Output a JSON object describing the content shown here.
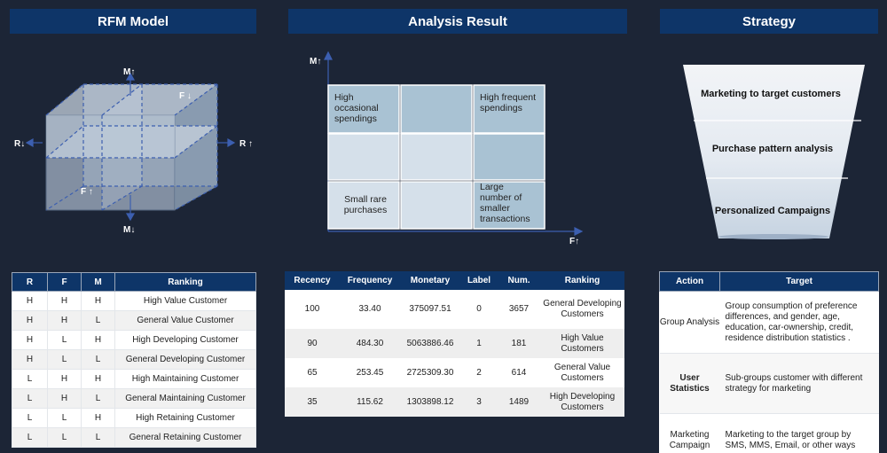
{
  "headers": {
    "rfm": "RFM Model",
    "analysis": "Analysis Result",
    "strategy": "Strategy"
  },
  "cube": {
    "m_up": "M↑",
    "m_down": "M↓",
    "r_left": "R↓",
    "r_right": "R ↑",
    "f_down": "F ↓",
    "f_up": "F ↑"
  },
  "grid": {
    "y_axis": "M↑",
    "x_axis": "F↑",
    "top_left": "High occasional spendings",
    "top_right": "High frequent spendings",
    "bottom_left": "Small rare purchases",
    "bottom_right": "Large number of smaller transactions"
  },
  "funnel": {
    "level1": "Marketing to target customers",
    "level2": "Purchase pattern analysis",
    "level3": "Personalized Campaigns"
  },
  "rfm_table": {
    "columns": [
      "R",
      "F",
      "M",
      "Ranking"
    ],
    "rows": [
      [
        "H",
        "H",
        "H",
        "High Value Customer"
      ],
      [
        "H",
        "H",
        "L",
        "General Value Customer"
      ],
      [
        "H",
        "L",
        "H",
        "High Developing Customer"
      ],
      [
        "H",
        "L",
        "L",
        "General Developing Customer"
      ],
      [
        "L",
        "H",
        "H",
        "High Maintaining Customer"
      ],
      [
        "L",
        "H",
        "L",
        "General Maintaining Customer"
      ],
      [
        "L",
        "L",
        "H",
        "High Retaining Customer"
      ],
      [
        "L",
        "L",
        "L",
        "General Retaining Customer"
      ]
    ]
  },
  "result_table": {
    "columns": [
      "Recency",
      "Frequency",
      "Monetary",
      "Label",
      "Num.",
      "Ranking"
    ],
    "rows": [
      [
        "100",
        "33.40",
        "375097.51",
        "0",
        "3657",
        "General Developing Customers"
      ],
      [
        "90",
        "484.30",
        "5063886.46",
        "1",
        "181",
        "High Value Customers"
      ],
      [
        "65",
        "253.45",
        "2725309.30",
        "2",
        "614",
        "General Value Customers"
      ],
      [
        "35",
        "115.62",
        "1303898.12",
        "3",
        "1489",
        "High Developing Customers"
      ]
    ]
  },
  "strategy_table": {
    "columns": [
      "Action",
      "Target"
    ],
    "rows": [
      [
        "Group Analysis",
        "Group consumption of preference differences, and gender, age, education, car-ownership, credit, residence distribution statistics ."
      ],
      [
        "User Statistics",
        "Sub-groups customer with different strategy for marketing"
      ],
      [
        "Marketing Campaign",
        "Marketing to the target group by SMS, MMS, Email, or other ways"
      ]
    ]
  },
  "colors": {
    "background": "#1c2536",
    "header": "#0e3568",
    "cube_face": "#b8c6d8",
    "grid_dark": "#a9c2d3",
    "grid_light": "#d5e0ea"
  }
}
